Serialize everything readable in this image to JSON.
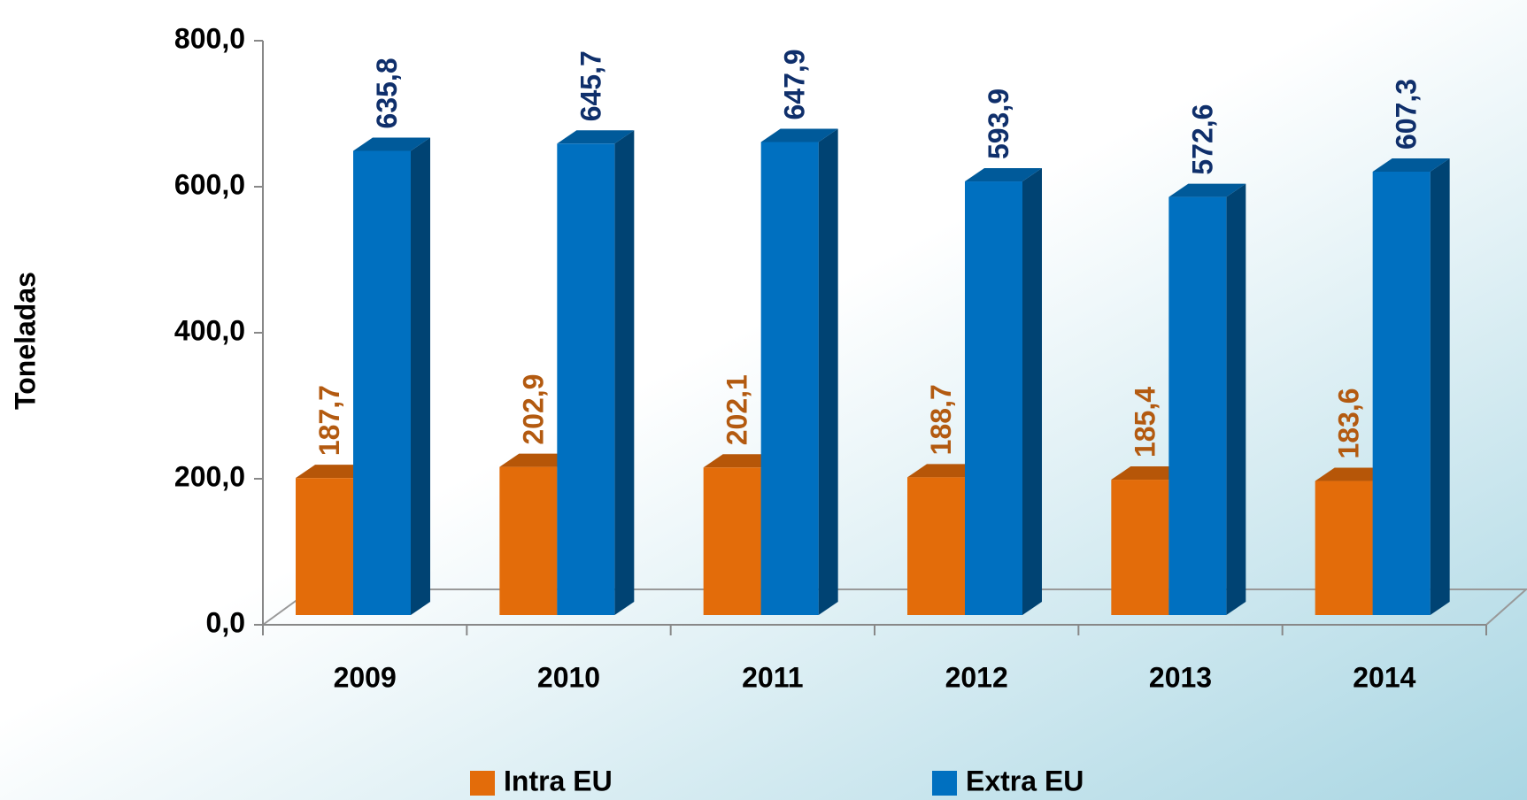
{
  "chart_data": {
    "type": "bar3d",
    "y_label": "Toneladas",
    "categories": [
      "2009",
      "2010",
      "2011",
      "2012",
      "2013",
      "2014"
    ],
    "series": [
      {
        "name": "Intra EU",
        "color": "#e36c0a",
        "values": [
          187.7,
          202.9,
          202.1,
          188.7,
          185.4,
          183.6
        ],
        "value_labels": [
          "187,7",
          "202,9",
          "202,1",
          "188,7",
          "185,4",
          "183,6"
        ],
        "label_color": "#b35a10"
      },
      {
        "name": "Extra EU",
        "color": "#0070c0",
        "values": [
          635.8,
          645.7,
          647.9,
          593.9,
          572.6,
          607.3
        ],
        "value_labels": [
          "635,8",
          "645,7",
          "647,9",
          "593,9",
          "572,6",
          "607,3"
        ],
        "label_color": "#0f2f6b"
      }
    ],
    "ylim": [
      0,
      800
    ],
    "yticks": [
      {
        "value": 0,
        "label": "0,0"
      },
      {
        "value": 200,
        "label": "200,0"
      },
      {
        "value": 400,
        "label": "400,0"
      },
      {
        "value": 600,
        "label": "600,0"
      },
      {
        "value": 800,
        "label": "800,0"
      }
    ]
  }
}
